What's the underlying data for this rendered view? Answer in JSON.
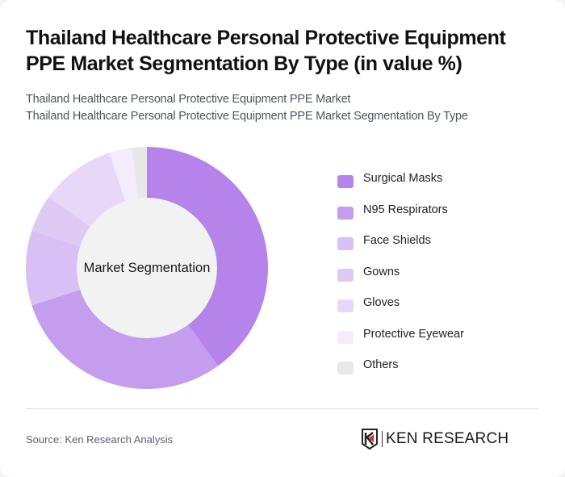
{
  "title": "Thailand Healthcare Personal Protective Equipment PPE Market Segmentation By Type (in value %)",
  "subtitle": {
    "line1": "Thailand Healthcare Personal Protective Equipment PPE Market",
    "line2": "Thailand Healthcare Personal Protective Equipment PPE Market Segmentation By Type"
  },
  "center_label": "Market Segmentation",
  "legend": [
    {
      "label": "Surgical Masks",
      "color": "#B583EA"
    },
    {
      "label": "N95 Respirators",
      "color": "#C49DEE"
    },
    {
      "label": "Face Shields",
      "color": "#D8BFF5"
    },
    {
      "label": "Gowns",
      "color": "#DFCAF6"
    },
    {
      "label": "Gloves",
      "color": "#E7D8F9"
    },
    {
      "label": "Protective Eyewear",
      "color": "#F3ECFC"
    },
    {
      "label": "Others",
      "color": "#E8E8E8"
    }
  ],
  "footer": {
    "source": "Source: Ken Research Analysis",
    "logo_text": "KEN RESEARCH"
  },
  "chart_data": {
    "type": "pie",
    "variant": "donut",
    "title": "Thailand Healthcare Personal Protective Equipment PPE Market Segmentation By Type (in value %)",
    "center_label": "Market Segmentation",
    "categories": [
      "Surgical Masks",
      "N95 Respirators",
      "Face Shields",
      "Gowns",
      "Gloves",
      "Protective Eyewear",
      "Others"
    ],
    "values": [
      40,
      30,
      10,
      5,
      10,
      3,
      2
    ],
    "unit": "%",
    "colors": [
      "#B583EA",
      "#C49DEE",
      "#D8BFF5",
      "#DFCAF6",
      "#E7D8F9",
      "#F3ECFC",
      "#E8E8E8"
    ],
    "start_angle_deg": 0,
    "direction": "clockwise",
    "legend_position": "right",
    "data_labels": false
  }
}
